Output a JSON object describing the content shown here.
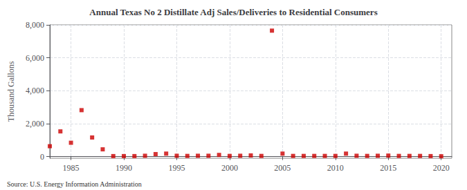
{
  "chart_data": {
    "type": "scatter",
    "title": "Annual Texas No 2 Distillate Adj Sales/Deliveries to Residential Consumers",
    "ylabel": "Thousand Gallons",
    "annotations": [
      "Source: U.S. Energy Information Administration"
    ],
    "x": [
      1983,
      1984,
      1985,
      1986,
      1987,
      1988,
      1989,
      1990,
      1991,
      1992,
      1993,
      1994,
      1995,
      1996,
      1997,
      1998,
      1999,
      2000,
      2001,
      2002,
      2003,
      2004,
      2005,
      2006,
      2007,
      2008,
      2009,
      2010,
      2011,
      2012,
      2013,
      2014,
      2015,
      2016,
      2017,
      2018,
      2019,
      2020
    ],
    "values": [
      630,
      1530,
      840,
      2820,
      1160,
      440,
      30,
      30,
      30,
      50,
      150,
      180,
      50,
      40,
      50,
      50,
      100,
      40,
      50,
      70,
      40,
      7650,
      180,
      40,
      40,
      40,
      40,
      40,
      180,
      50,
      40,
      50,
      60,
      40,
      40,
      40,
      30,
      20
    ],
    "color": "#cc0000",
    "marker": "square",
    "xlim": [
      1983,
      2021
    ],
    "ylim": [
      -100,
      8000
    ],
    "xticks": [
      1985,
      1990,
      1995,
      2000,
      2005,
      2010,
      2015,
      2020
    ],
    "yticks": [
      0,
      {
        "value": 2000,
        "label": "2,000"
      },
      {
        "value": 4000,
        "label": "4,000"
      },
      {
        "value": 6000,
        "label": "6,000"
      },
      {
        "value": 8000,
        "label": "8,000"
      }
    ],
    "grid": true
  }
}
